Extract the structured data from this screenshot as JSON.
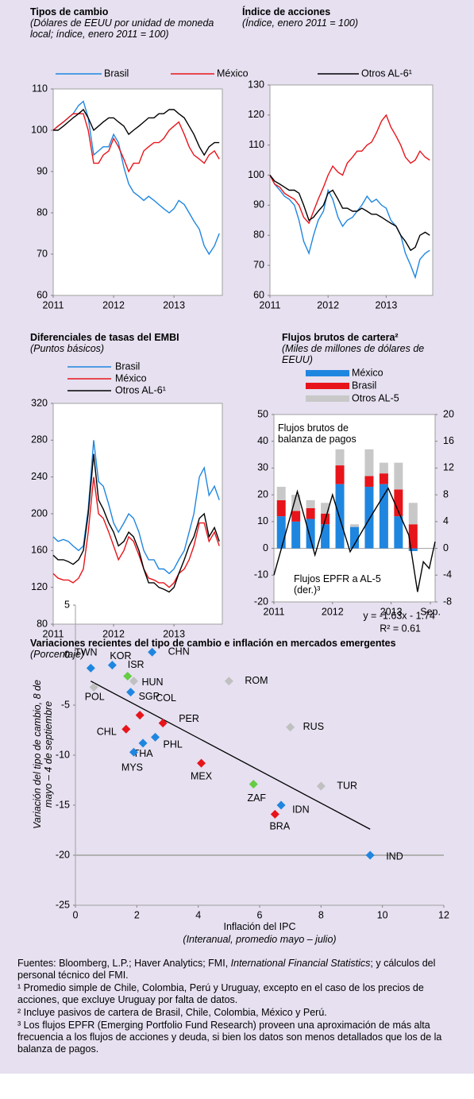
{
  "chart_data": [
    {
      "type": "line",
      "title": "Tipos de cambio",
      "subtitle": "(Dólares de EEUU por unidad de moneda local; índice, enero 2011 = 100)",
      "x": [
        2011.0,
        2011.08,
        2011.17,
        2011.25,
        2011.33,
        2011.42,
        2011.5,
        2011.58,
        2011.67,
        2011.75,
        2011.83,
        2011.92,
        2012.0,
        2012.08,
        2012.17,
        2012.25,
        2012.33,
        2012.42,
        2012.5,
        2012.58,
        2012.67,
        2012.75,
        2012.83,
        2012.92,
        2013.0,
        2013.08,
        2013.17,
        2013.25,
        2013.33,
        2013.42,
        2013.5,
        2013.58,
        2013.67,
        2013.75
      ],
      "xlim": [
        2011,
        2013.8
      ],
      "xticks": [
        2011,
        2012,
        2013
      ],
      "ylim": [
        60,
        110
      ],
      "yticks": [
        60,
        70,
        80,
        90,
        100,
        110
      ],
      "series": [
        {
          "name": "Brasil",
          "color": "#1f86e0",
          "values": [
            100,
            101,
            102,
            103,
            104,
            106,
            107,
            103,
            94,
            95,
            96,
            96,
            99,
            97,
            91,
            87,
            85,
            84,
            83,
            84,
            83,
            82,
            81,
            80,
            81,
            83,
            82,
            80,
            78,
            76,
            72,
            70,
            72,
            75
          ]
        },
        {
          "name": "México",
          "color": "#e8141b",
          "values": [
            100,
            101,
            102,
            103,
            104,
            104,
            104,
            100,
            92,
            92,
            94,
            95,
            98,
            96,
            93,
            90,
            92,
            92,
            95,
            96,
            97,
            97,
            98,
            100,
            101,
            102,
            99,
            96,
            94,
            93,
            92,
            94,
            95,
            93
          ]
        },
        {
          "name": "Otros AL-6¹",
          "color": "#000000",
          "values": [
            100,
            100,
            101,
            102,
            103,
            104,
            105,
            103,
            100,
            101,
            102,
            103,
            103,
            102,
            101,
            99,
            100,
            101,
            102,
            103,
            103,
            104,
            104,
            105,
            105,
            104,
            103,
            101,
            99,
            96,
            94,
            96,
            97,
            97
          ]
        }
      ]
    },
    {
      "type": "line",
      "title": "Índice de acciones",
      "subtitle": "(Índice, enero 2011 = 100)",
      "x": [
        2011.0,
        2011.08,
        2011.17,
        2011.25,
        2011.33,
        2011.42,
        2011.5,
        2011.58,
        2011.67,
        2011.75,
        2011.83,
        2011.92,
        2012.0,
        2012.08,
        2012.17,
        2012.25,
        2012.33,
        2012.42,
        2012.5,
        2012.58,
        2012.67,
        2012.75,
        2012.83,
        2012.92,
        2013.0,
        2013.08,
        2013.17,
        2013.25,
        2013.33,
        2013.42,
        2013.5,
        2013.58,
        2013.67,
        2013.75
      ],
      "xlim": [
        2011,
        2013.8
      ],
      "xticks": [
        2011,
        2012,
        2013
      ],
      "ylim": [
        60,
        130
      ],
      "yticks": [
        60,
        70,
        80,
        90,
        100,
        110,
        120,
        130
      ],
      "series": [
        {
          "color": "#1f86e0",
          "values": [
            100,
            97,
            95,
            93,
            92,
            90,
            85,
            78,
            74,
            80,
            85,
            88,
            95,
            92,
            86,
            83,
            85,
            86,
            88,
            90,
            93,
            91,
            92,
            90,
            89,
            85,
            83,
            80,
            74,
            70,
            66,
            72,
            74,
            75
          ]
        },
        {
          "color": "#e8141b",
          "values": [
            100,
            97,
            96,
            94,
            93,
            92,
            90,
            86,
            84,
            88,
            92,
            96,
            100,
            103,
            101,
            100,
            104,
            106,
            108,
            108,
            110,
            111,
            114,
            118,
            120,
            116,
            113,
            110,
            106,
            104,
            105,
            108,
            106,
            105
          ]
        },
        {
          "color": "#000000",
          "values": [
            100,
            98,
            97,
            96,
            95,
            95,
            94,
            90,
            85,
            86,
            88,
            90,
            94,
            95,
            92,
            89,
            89,
            88,
            88,
            89,
            88,
            87,
            87,
            86,
            85,
            84,
            83,
            80,
            78,
            75,
            76,
            80,
            81,
            80
          ]
        }
      ]
    },
    {
      "type": "line",
      "title": "Diferenciales de tasas del EMBI",
      "subtitle": "(Puntos básicos)",
      "x": [
        2011.0,
        2011.08,
        2011.17,
        2011.25,
        2011.33,
        2011.42,
        2011.5,
        2011.58,
        2011.67,
        2011.75,
        2011.83,
        2011.92,
        2012.0,
        2012.08,
        2012.17,
        2012.25,
        2012.33,
        2012.42,
        2012.5,
        2012.58,
        2012.67,
        2012.75,
        2012.83,
        2012.92,
        2013.0,
        2013.08,
        2013.17,
        2013.25,
        2013.33,
        2013.42,
        2013.5,
        2013.58,
        2013.67,
        2013.75
      ],
      "xlim": [
        2011,
        2013.8
      ],
      "xticks": [
        2011,
        2012,
        2013
      ],
      "ylim": [
        80,
        320
      ],
      "yticks": [
        80,
        120,
        160,
        200,
        240,
        280,
        320
      ],
      "series": [
        {
          "name": "Brasil",
          "color": "#1f86e0",
          "values": [
            175,
            170,
            172,
            170,
            165,
            160,
            165,
            205,
            280,
            235,
            230,
            210,
            190,
            180,
            190,
            200,
            195,
            180,
            160,
            150,
            150,
            140,
            140,
            135,
            140,
            150,
            160,
            180,
            200,
            240,
            250,
            220,
            230,
            215
          ]
        },
        {
          "name": "México",
          "color": "#e8141b",
          "values": [
            135,
            130,
            128,
            128,
            125,
            130,
            140,
            180,
            240,
            200,
            195,
            180,
            165,
            150,
            160,
            175,
            170,
            155,
            140,
            130,
            128,
            125,
            125,
            120,
            125,
            135,
            140,
            150,
            165,
            190,
            190,
            170,
            180,
            165
          ]
        },
        {
          "name": "Otros AL-6¹",
          "color": "#000000",
          "values": [
            155,
            150,
            150,
            148,
            145,
            150,
            160,
            200,
            265,
            215,
            205,
            190,
            180,
            165,
            170,
            180,
            175,
            160,
            140,
            125,
            125,
            120,
            118,
            115,
            120,
            135,
            150,
            165,
            175,
            195,
            200,
            175,
            185,
            170
          ]
        }
      ]
    },
    {
      "type": "combo",
      "title": "Flujos brutos de cartera²",
      "subtitle": "(Miles de millones de dólares de EEUU)",
      "x": [
        2011.125,
        2011.375,
        2011.625,
        2011.875,
        2012.125,
        2012.375,
        2012.625,
        2012.875,
        2013.125,
        2013.375
      ],
      "xlim": [
        2011,
        2013.75
      ],
      "xticks": [
        2011,
        2012,
        2013,
        {
          "value": 2013.67,
          "label": "Sep."
        }
      ],
      "ylim": [
        -20,
        50
      ],
      "yticks": [
        -20,
        -10,
        0,
        10,
        20,
        30,
        40,
        50
      ],
      "y2lim": [
        -8,
        20
      ],
      "y2ticks": [
        -8,
        -4,
        0,
        4,
        8,
        12,
        16,
        20
      ],
      "series": [
        {
          "name": "México",
          "color": "#1f86e0",
          "values": [
            12,
            10,
            11,
            9,
            24,
            8,
            23,
            24,
            12,
            -1
          ]
        },
        {
          "name": "Brasil",
          "color": "#e8141b",
          "values": [
            6,
            4,
            4,
            4,
            7,
            0,
            4,
            4,
            10,
            9
          ]
        },
        {
          "name": "Otros AL-5",
          "color": "#c8c8c8",
          "values": [
            5,
            6,
            3,
            4,
            6,
            1,
            10,
            4,
            10,
            8
          ]
        },
        {
          "axis": "y2",
          "color": "#000000",
          "x": [
            2011.0,
            2011.4,
            2011.7,
            2012.0,
            2012.3,
            2012.6,
            2012.95,
            2013.3,
            2013.45,
            2013.55,
            2013.65,
            2013.75
          ],
          "values": [
            -4,
            8.5,
            -1,
            8,
            -0.5,
            4,
            9,
            2,
            -6.5,
            -2,
            -3,
            1
          ]
        }
      ],
      "annotations": [
        "Flujos brutos de balanza de pagos",
        "Flujos EPFR a AL-5 (der.)³"
      ]
    },
    {
      "type": "scatter",
      "title": "Variaciones recientes del tipo de cambio e inflación en mercados emergentes",
      "subtitle": "(Porcentaje)",
      "xlabel": "Inflación del IPC",
      "xlabel_note": "(Interanual, promedio mayo – julio)",
      "ylabel": "Variación del tipo de cambio, 8 de mayo – 4 de septiembre",
      "xlim": [
        0,
        12
      ],
      "xticks": [
        0,
        2,
        4,
        6,
        8,
        10,
        12
      ],
      "ylim": [
        -25,
        5
      ],
      "yticks": [
        -25,
        -20,
        -15,
        -10,
        -5,
        0,
        5
      ],
      "labels": [
        "TWN",
        "KOR",
        "POL",
        "ISR",
        "HUN",
        "SGP",
        "CHN",
        "ROM",
        "CHL",
        "COL",
        "PER",
        "PHL",
        "THA",
        "MYS",
        "MEX",
        "RUS",
        "TUR",
        "ZAF",
        "IDN",
        "BRA",
        "IND"
      ],
      "x": [
        0.5,
        1.2,
        0.6,
        1.7,
        1.9,
        1.8,
        2.5,
        5.0,
        1.65,
        2.1,
        2.85,
        2.6,
        2.2,
        1.9,
        4.1,
        7.0,
        8.0,
        5.8,
        6.7,
        6.5,
        9.6
      ],
      "values": [
        -1.3,
        -1.0,
        -3.2,
        -2.1,
        -2.6,
        -3.7,
        0.3,
        -2.6,
        -7.4,
        -6.0,
        -6.8,
        -8.2,
        -8.8,
        -9.7,
        -10.8,
        -7.2,
        -13.1,
        -12.9,
        -15.0,
        -15.9,
        -20.0
      ],
      "colors": [
        "#1f86e0",
        "#1f86e0",
        "#c0c0c0",
        "#66cc44",
        "#c0c0c0",
        "#1f86e0",
        "#1f86e0",
        "#c0c0c0",
        "#e8141b",
        "#e8141b",
        "#e8141b",
        "#1f86e0",
        "#1f86e0",
        "#1f86e0",
        "#e8141b",
        "#c0c0c0",
        "#c0c0c0",
        "#66cc44",
        "#1f86e0",
        "#e8141b",
        "#1f86e0"
      ],
      "trendline": {
        "x": [
          0.5,
          9.6
        ],
        "values": [
          -2.6,
          -17.4
        ]
      },
      "reference_line": -20,
      "equation": "y = -1.63x - 1.74",
      "r2": "R² = 0.61"
    }
  ],
  "notes": {
    "sources": [
      "Fuentes: Bloomberg, L.P.; Haver Analytics; FMI, ",
      "International Financial Statistics",
      "; y cálculos del personal técnico del FMI."
    ],
    "footnotes": [
      "¹ Promedio simple de Chile, Colombia, Perú y Uruguay, excepto en el caso de los precios de acciones, que excluye Uruguay por falta de datos.",
      "² Incluye pasivos de cartera de Brasil, Chile, Colombia, México y Perú.",
      "³ Los flujos EPFR (Emerging Portfolio Fund Research) proveen una aproximación de más alta frecuencia a los flujos de acciones y deuda, si bien los datos son menos detallados que los de la balanza de pagos."
    ]
  }
}
